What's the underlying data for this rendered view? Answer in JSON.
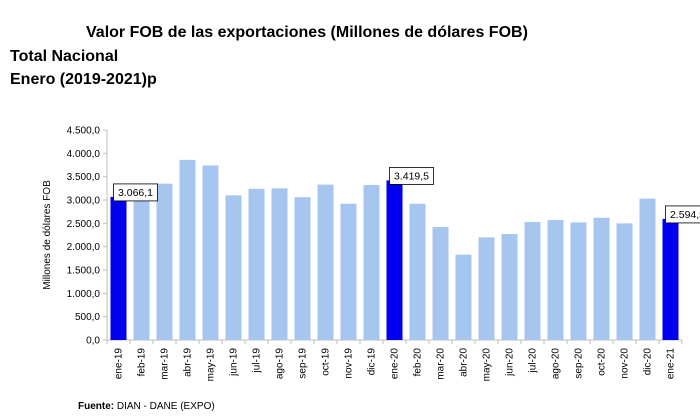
{
  "header": {
    "title": "Valor FOB de las exportaciones (Millones de dólares FOB)",
    "subtitle": "Total Nacional",
    "period": "Enero (2019-2021)p"
  },
  "source": {
    "label": "Fuente:",
    "text": "DIAN - DANE (EXPO)"
  },
  "colors": {
    "highlight": "#0000ee",
    "bar": "#a7c6ef",
    "axis": "#bfbfbf"
  },
  "chart_data": {
    "type": "bar",
    "title": "Valor FOB de las exportaciones (Millones de dólares FOB)",
    "xlabel": "",
    "ylabel": "Millones de dólares FOB",
    "ylim": [
      0,
      4500
    ],
    "yticks": [
      0,
      500,
      1000,
      1500,
      2000,
      2500,
      3000,
      3500,
      4000,
      4500
    ],
    "ytick_labels": [
      "0,0",
      "500,0",
      "1.000,0",
      "1.500,0",
      "2.000,0",
      "2.500,0",
      "3.000,0",
      "3.500,0",
      "4.000,0",
      "4.500,0"
    ],
    "grid": false,
    "categories": [
      "ene-19",
      "feb-19",
      "mar-19",
      "abr-19",
      "may-19",
      "jun-19",
      "jul-19",
      "ago-19",
      "sep-19",
      "oct-19",
      "nov-19",
      "dic-19",
      "ene-20",
      "feb-20",
      "mar-20",
      "abr-20",
      "may-20",
      "jun-20",
      "jul-20",
      "ago-20",
      "sep-20",
      "oct-20",
      "nov-20",
      "dic-20",
      "ene-21"
    ],
    "values": [
      3066.1,
      3080,
      3350,
      3860,
      3740,
      3100,
      3240,
      3250,
      3060,
      3330,
      2920,
      3320,
      3419.5,
      2920,
      2420,
      1830,
      2200,
      2270,
      2530,
      2570,
      2520,
      2620,
      2500,
      3030,
      2594.5
    ],
    "highlighted": [
      0,
      12,
      24
    ],
    "data_labels": [
      {
        "index": 0,
        "text": "3.066,1"
      },
      {
        "index": 12,
        "text": "3.419,5"
      },
      {
        "index": 24,
        "text": "2.594,5"
      }
    ]
  }
}
